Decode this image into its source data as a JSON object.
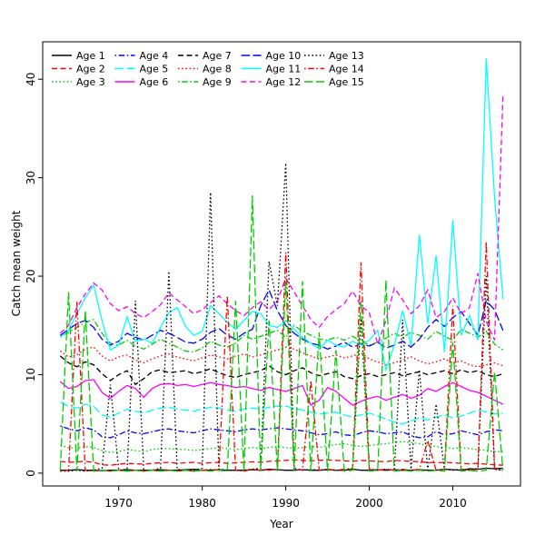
{
  "figure": {
    "background": "#ffffff",
    "box_color": "#000000"
  },
  "chart_data": {
    "type": "line",
    "title": "",
    "xlabel": "Year",
    "ylabel": "Catch mean weight",
    "grid": false,
    "legend_position": "top-left-inside",
    "legend_columns": 5,
    "legend_rows": 3,
    "x_start": 1963,
    "x_end": 2016,
    "xlim": [
      1960.9,
      2018.1
    ],
    "ylim": [
      -1.3,
      43.8
    ],
    "x_ticks": [
      1970,
      1980,
      1990,
      2000,
      2010
    ],
    "y_ticks": [
      0,
      10,
      20,
      30,
      40
    ],
    "palette": {
      "black": "#000000",
      "red": "#FF0000",
      "green": "#00CD00",
      "blue": "#0000FF",
      "cyan": "#00FFFF",
      "magenta": "#FF00FF"
    },
    "series": [
      {
        "name": "Age 1",
        "color": "#000000",
        "linetype": "solid",
        "values": [
          0.3,
          0.3,
          0.35,
          0.3,
          0.3,
          0.25,
          0.3,
          0.3,
          0.35,
          0.3,
          0.3,
          0.3,
          0.35,
          0.3,
          0.3,
          0.35,
          0.4,
          0.3,
          0.3,
          0.35,
          0.3,
          0.3,
          0.3,
          0.35,
          0.3,
          0.4,
          0.35,
          0.3,
          0.3,
          0.35,
          0.3,
          0.3,
          0.35,
          0.3,
          0.3,
          0.4,
          0.3,
          0.3,
          0.35,
          0.3,
          0.35,
          0.3,
          0.3,
          0.35,
          0.3,
          0.3,
          0.4,
          0.35,
          0.3,
          0.45,
          0.4,
          0.5,
          0.45,
          0.5
        ]
      },
      {
        "name": "Age 2",
        "color": "#FF0000",
        "linetype": "dashed",
        "values": [
          1.2,
          1.1,
          1.15,
          1.2,
          1.1,
          0.85,
          0.8,
          0.9,
          1.0,
          0.95,
          0.9,
          1.0,
          1.05,
          1.1,
          1.0,
          1.05,
          1.1,
          1.0,
          1.05,
          1.1,
          1.0,
          1.05,
          1.1,
          1.15,
          1.1,
          1.2,
          1.25,
          1.3,
          1.35,
          1.3,
          1.25,
          1.3,
          1.35,
          1.3,
          1.25,
          1.2,
          1.3,
          1.25,
          1.2,
          1.15,
          1.3,
          1.25,
          1.2,
          1.15,
          1.1,
          1.05,
          1.1,
          1.05,
          1.0,
          0.95,
          1.0,
          0.9,
          0.85,
          0.8
        ]
      },
      {
        "name": "Age 3",
        "color": "#00CD00",
        "linetype": "dotted",
        "values": [
          2.8,
          2.6,
          2.5,
          2.7,
          2.6,
          2.3,
          2.1,
          2.2,
          2.4,
          2.3,
          2.2,
          2.4,
          2.5,
          2.5,
          2.4,
          2.4,
          2.3,
          2.4,
          2.5,
          2.6,
          2.5,
          2.4,
          2.5,
          2.6,
          2.5,
          2.6,
          2.7,
          2.6,
          2.5,
          2.6,
          2.7,
          2.6,
          2.8,
          2.9,
          3.0,
          2.8,
          2.7,
          2.8,
          2.9,
          3.0,
          3.1,
          3.2,
          3.1,
          3.0,
          2.8,
          2.7,
          2.6,
          2.5,
          2.6,
          2.5,
          2.4,
          2.3,
          2.2,
          2.2
        ]
      },
      {
        "name": "Age 4",
        "color": "#0000FF",
        "linetype": "dotdash",
        "values": [
          4.8,
          4.5,
          4.3,
          4.6,
          4.4,
          3.7,
          3.6,
          3.9,
          4.3,
          4.1,
          4.0,
          4.2,
          4.4,
          4.5,
          4.3,
          4.2,
          4.1,
          4.3,
          4.5,
          4.4,
          4.3,
          4.2,
          4.4,
          4.5,
          4.4,
          4.5,
          4.6,
          4.5,
          4.4,
          4.3,
          4.1,
          3.9,
          4.0,
          4.2,
          3.9,
          3.8,
          4.1,
          4.3,
          4.2,
          4.0,
          4.1,
          4.2,
          3.8,
          3.6,
          3.7,
          4.2,
          3.9,
          4.0,
          4.3,
          4.1,
          3.9,
          4.2,
          4.4,
          4.3
        ]
      },
      {
        "name": "Age 5",
        "color": "#00FFFF",
        "linetype": "longdash",
        "values": [
          7.2,
          6.8,
          6.6,
          7.0,
          6.8,
          5.9,
          5.7,
          6.1,
          6.5,
          6.3,
          6.1,
          6.4,
          6.6,
          6.7,
          6.5,
          6.4,
          6.3,
          6.5,
          6.7,
          6.6,
          6.4,
          6.3,
          6.5,
          6.6,
          6.5,
          6.7,
          6.8,
          6.8,
          6.6,
          6.4,
          6.2,
          6.0,
          6.1,
          6.2,
          5.9,
          5.7,
          5.9,
          6.1,
          5.8,
          5.5,
          5.2,
          5.0,
          5.3,
          5.6,
          5.4,
          5.7,
          5.9,
          5.6,
          5.8,
          6.1,
          6.4,
          6.2,
          6.0,
          6.1
        ]
      },
      {
        "name": "Age 6",
        "color": "#FF00FF",
        "linetype": "solid",
        "values": [
          9.3,
          8.6,
          8.8,
          9.4,
          9.5,
          8.2,
          7.6,
          8.3,
          8.9,
          8.6,
          7.7,
          8.6,
          9.0,
          9.1,
          8.9,
          9.0,
          8.8,
          9.0,
          9.2,
          9.0,
          8.9,
          8.7,
          8.8,
          8.6,
          8.4,
          8.7,
          8.5,
          8.3,
          8.6,
          8.9,
          6.9,
          7.4,
          8.7,
          8.3,
          7.6,
          6.9,
          7.3,
          7.6,
          7.8,
          7.4,
          7.7,
          8.0,
          7.6,
          7.9,
          8.6,
          8.3,
          8.8,
          9.2,
          8.8,
          8.4,
          8.2,
          7.8,
          7.4,
          7.0
        ]
      },
      {
        "name": "Age 7",
        "color": "#000000",
        "linetype": "dashed",
        "values": [
          11.9,
          11.2,
          10.8,
          11.3,
          11.0,
          10.1,
          9.4,
          10.0,
          10.4,
          9.0,
          9.6,
          10.3,
          10.5,
          10.2,
          10.3,
          10.4,
          10.1,
          10.3,
          10.6,
          10.2,
          9.9,
          9.7,
          10.0,
          10.2,
          10.4,
          10.9,
          10.3,
          10.0,
          10.4,
          10.7,
          10.2,
          9.9,
          10.1,
          10.3,
          9.8,
          9.6,
          9.9,
          10.1,
          9.8,
          10.0,
          10.2,
          9.9,
          10.1,
          10.3,
          10.0,
          10.2,
          10.4,
          10.1,
          10.5,
          10.2,
          10.4,
          10.0,
          9.8,
          10.1
        ]
      },
      {
        "name": "Age 8",
        "color": "#FF0000",
        "linetype": "dotted",
        "values": [
          12.4,
          11.8,
          12.0,
          12.6,
          12.8,
          11.9,
          11.4,
          11.8,
          12.0,
          11.5,
          11.2,
          11.6,
          11.9,
          12.1,
          11.8,
          11.6,
          11.4,
          11.7,
          12.0,
          11.8,
          11.6,
          11.9,
          12.1,
          11.8,
          12.0,
          12.3,
          12.5,
          12.8,
          12.6,
          12.2,
          11.9,
          11.6,
          11.8,
          12.0,
          11.7,
          11.9,
          12.2,
          11.6,
          11.3,
          11.0,
          11.2,
          11.5,
          11.8,
          11.4,
          11.1,
          11.3,
          11.6,
          11.2,
          11.4,
          11.0,
          10.8,
          11.0,
          11.2,
          10.9
        ]
      },
      {
        "name": "Age 9",
        "color": "#00CD00",
        "linetype": "dotdash",
        "values": [
          13.9,
          14.3,
          14.8,
          15.3,
          15.6,
          14.2,
          13.2,
          13.0,
          13.5,
          12.9,
          12.6,
          13.1,
          13.6,
          13.2,
          12.8,
          12.4,
          12.3,
          12.7,
          13.4,
          13.0,
          12.8,
          13.2,
          14.0,
          13.6,
          13.9,
          14.2,
          14.5,
          13.8,
          15.0,
          14.4,
          14.0,
          13.6,
          13.5,
          13.8,
          13.5,
          13.9,
          13.4,
          13.0,
          13.3,
          13.7,
          14.2,
          13.8,
          14.3,
          14.0,
          13.6,
          14.4,
          13.9,
          13.5,
          14.6,
          14.2,
          13.8,
          14.4,
          13.1,
          12.5
        ]
      },
      {
        "name": "Age 10",
        "color": "#0000FF",
        "linetype": "longdash",
        "values": [
          14.0,
          14.6,
          15.2,
          15.5,
          14.8,
          13.6,
          13.0,
          13.4,
          14.2,
          13.8,
          13.5,
          14.0,
          14.5,
          14.2,
          13.8,
          13.3,
          13.2,
          13.6,
          14.3,
          14.7,
          14.0,
          13.6,
          14.2,
          14.6,
          17.0,
          18.6,
          16.5,
          15.0,
          14.2,
          13.6,
          13.2,
          13.0,
          12.6,
          12.9,
          13.3,
          12.8,
          13.1,
          12.9,
          13.3,
          12.7,
          13.0,
          13.4,
          12.8,
          13.6,
          14.8,
          15.6,
          14.9,
          15.8,
          16.4,
          15.2,
          14.0,
          17.5,
          16.6,
          14.5
        ]
      },
      {
        "name": "Age 11",
        "color": "#00FFFF",
        "linetype": "solid",
        "values": [
          13.8,
          14.5,
          16.2,
          17.8,
          19.1,
          15.5,
          12.5,
          13.0,
          15.9,
          13.4,
          13.6,
          13.2,
          14.8,
          16.3,
          16.8,
          14.9,
          14.0,
          14.4,
          17.0,
          16.2,
          15.3,
          14.6,
          15.5,
          16.4,
          16.2,
          15.0,
          14.8,
          15.5,
          14.6,
          13.8,
          13.2,
          12.6,
          13.5,
          13.0,
          12.8,
          13.4,
          13.0,
          13.5,
          14.5,
          10.5,
          13.0,
          16.5,
          13.0,
          24.2,
          15.2,
          22.1,
          12.3,
          25.7,
          14.0,
          16.0,
          13.5,
          42.1,
          28.0,
          17.7
        ]
      },
      {
        "name": "Age 12",
        "color": "#FF00FF",
        "linetype": "dashed",
        "values": [
          14.2,
          15.0,
          16.8,
          18.2,
          19.3,
          18.6,
          17.2,
          16.5,
          16.9,
          16.2,
          15.8,
          16.4,
          17.1,
          18.3,
          17.6,
          16.9,
          16.2,
          16.6,
          17.3,
          18.0,
          17.2,
          16.5,
          16.0,
          16.8,
          17.4,
          16.6,
          17.5,
          19.8,
          18.4,
          17.0,
          15.6,
          14.8,
          15.9,
          16.6,
          17.2,
          18.5,
          17.0,
          16.3,
          13.1,
          15.5,
          18.8,
          17.6,
          16.2,
          17.0,
          18.6,
          15.8,
          16.4,
          17.8,
          16.2,
          16.8,
          20.3,
          15.4,
          13.5,
          38.3
        ]
      },
      {
        "name": "Age 13",
        "color": "#000000",
        "linetype": "dotted",
        "values": [
          0.2,
          0.2,
          0.3,
          0.2,
          0.3,
          0.5,
          9.0,
          0.3,
          0.4,
          17.5,
          0.3,
          0.3,
          0.5,
          20.5,
          0.4,
          0.3,
          0.3,
          0.5,
          28.5,
          0.4,
          0.3,
          0.3,
          0.3,
          0.4,
          0.5,
          21.5,
          17.0,
          31.5,
          0.5,
          0.3,
          0.4,
          0.3,
          0.4,
          0.3,
          0.3,
          0.5,
          15.7,
          0.4,
          0.3,
          0.4,
          0.3,
          15.6,
          0.4,
          10.5,
          0.3,
          7.0,
          0.4,
          0.3,
          0.4,
          0.3,
          0.5,
          20.0,
          0.4,
          0.3
        ]
      },
      {
        "name": "Age 14",
        "color": "#FF0000",
        "linetype": "dotdash",
        "values": [
          0.2,
          0.3,
          17.4,
          0.3,
          0.2,
          0.3,
          0.2,
          0.3,
          0.2,
          0.3,
          0.2,
          0.3,
          0.2,
          0.3,
          0.2,
          0.3,
          0.2,
          0.3,
          0.4,
          0.3,
          18.0,
          0.3,
          0.2,
          0.4,
          0.3,
          0.3,
          0.4,
          22.4,
          0.4,
          0.3,
          9.4,
          0.3,
          0.4,
          0.3,
          0.4,
          0.5,
          21.4,
          0.4,
          0.3,
          0.4,
          0.3,
          0.4,
          0.3,
          0.4,
          3.3,
          0.3,
          0.4,
          17.0,
          0.4,
          0.3,
          0.4,
          23.5,
          0.4,
          0.3
        ]
      },
      {
        "name": "Age 15",
        "color": "#00CD00",
        "linetype": "longdash",
        "values": [
          0.3,
          18.4,
          0.2,
          16.5,
          0.2,
          0.3,
          0.2,
          0.3,
          0.2,
          0.3,
          0.2,
          0.3,
          0.2,
          0.3,
          0.2,
          0.3,
          0.2,
          0.3,
          0.2,
          0.3,
          0.2,
          17.5,
          0.2,
          28.2,
          0.2,
          15.5,
          0.2,
          19.5,
          0.2,
          19.5,
          0.2,
          14.3,
          0.2,
          12.5,
          0.2,
          0.3,
          17.5,
          0.2,
          0.3,
          19.6,
          0.2,
          0.3,
          0.2,
          0.3,
          0.2,
          0.3,
          0.2,
          13.3,
          0.2,
          0.3,
          0.2,
          0.3,
          10.3,
          0.3
        ]
      }
    ]
  }
}
